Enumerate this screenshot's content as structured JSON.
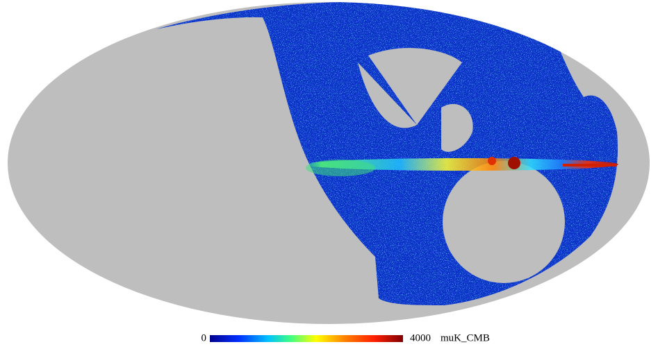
{
  "colorbar": {
    "min": 0,
    "max": 4000,
    "unit": "muK_CMB"
  }
}
